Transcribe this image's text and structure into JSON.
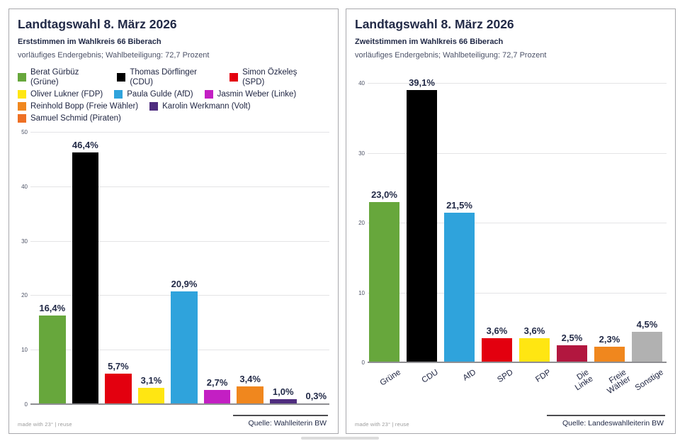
{
  "colors": {
    "heading": "#222a47",
    "muted_text": "#4c5268",
    "gruene_green": "#67a73c",
    "cdu_black": "#000000",
    "spd_red": "#e3000f",
    "fdp_yellow": "#ffe612",
    "afd_blue": "#2fa3dc",
    "linke_magenta": "#c31fc3",
    "freie_waehler_orange": "#f0871e",
    "volt_purple": "#4f2d7f",
    "piraten_orange": "#ee7024",
    "die_linke_crimson": "#b2173f",
    "sonstige_gray": "#b1b1b1"
  },
  "chart_data": [
    {
      "type": "bar",
      "title": "Landtagswahl 8. März 2026",
      "subtitle": "Erststimmen im Wahlkreis 66 Biberach",
      "note": "vorläufiges Endergebnis; Wahlbeteiligung: 72,7 Prozent",
      "xlabel": "",
      "ylabel": "",
      "ylim": [
        0,
        50
      ],
      "yticks": [
        0,
        10,
        20,
        30,
        40,
        50
      ],
      "grid": true,
      "legend_position": "top",
      "legend": [
        {
          "label": "Berat Gürbüz (Grüne)",
          "color": "#67a73c",
          "row": 0
        },
        {
          "label": "Thomas Dörflinger (CDU)",
          "color": "#000000",
          "row": 0
        },
        {
          "label": "Simon Özkeleş (SPD)",
          "color": "#e3000f",
          "row": 0
        },
        {
          "label": "Oliver Lukner (FDP)",
          "color": "#ffe612",
          "row": 1
        },
        {
          "label": "Paula Gulde (AfD)",
          "color": "#2fa3dc",
          "row": 1
        },
        {
          "label": "Jasmin Weber (Linke)",
          "color": "#c31fc3",
          "row": 1
        },
        {
          "label": "Reinhold Bopp (Freie Wähler)",
          "color": "#f0871e",
          "row": 2
        },
        {
          "label": "Karolin Werkmann (Volt)",
          "color": "#4f2d7f",
          "row": 2
        },
        {
          "label": "Samuel Schmid (Piraten)",
          "color": "#ee7024",
          "row": 3
        }
      ],
      "categories": [
        "Grüne",
        "CDU",
        "SPD",
        "FDP",
        "AfD",
        "Linke",
        "Freie Wähler",
        "Volt",
        "Piraten"
      ],
      "values": [
        16.4,
        46.4,
        5.7,
        3.1,
        20.9,
        2.7,
        3.4,
        1.0,
        0.3
      ],
      "value_labels": [
        "16,4%",
        "46,4%",
        "5,7%",
        "3,1%",
        "20,9%",
        "2,7%",
        "3,4%",
        "1,0%",
        "0,3%"
      ],
      "bar_colors": [
        "#67a73c",
        "#000000",
        "#e3000f",
        "#ffe612",
        "#2fa3dc",
        "#c31fc3",
        "#f0871e",
        "#4f2d7f",
        "#ee7024"
      ],
      "x_tick_labels": [],
      "credit": "made with 23° | reuse",
      "source": "Quelle: Wahlleiterin BW"
    },
    {
      "type": "bar",
      "title": "Landtagswahl 8. März 2026",
      "subtitle": "Zweitstimmen im Wahlkreis 66 Biberach",
      "note": "vorläufiges Endergebnis; Wahlbeteiligung: 72,7 Prozent",
      "xlabel": "",
      "ylabel": "",
      "ylim": [
        0,
        40
      ],
      "yticks": [
        0,
        10,
        20,
        30,
        40
      ],
      "grid": true,
      "legend_position": "none",
      "legend": [],
      "categories": [
        "Grüne",
        "CDU",
        "AfD",
        "SPD",
        "FDP",
        "Die Linke",
        "Freie Wähler",
        "Sonstige"
      ],
      "values": [
        23.0,
        39.1,
        21.5,
        3.6,
        3.6,
        2.5,
        2.3,
        4.5
      ],
      "value_labels": [
        "23,0%",
        "39,1%",
        "21,5%",
        "3,6%",
        "3,6%",
        "2,5%",
        "2,3%",
        "4,5%"
      ],
      "bar_colors": [
        "#67a73c",
        "#000000",
        "#2fa3dc",
        "#e3000f",
        "#ffe612",
        "#b2173f",
        "#f0871e",
        "#b1b1b1"
      ],
      "x_tick_labels": [
        "Grüne",
        "CDU",
        "AfD",
        "SPD",
        "FDP",
        "Die\nLinke",
        "Freie\nWähler",
        "Sonstige"
      ],
      "credit": "made with 23° | reuse",
      "source": "Quelle: Landeswahlleiterin BW"
    }
  ]
}
